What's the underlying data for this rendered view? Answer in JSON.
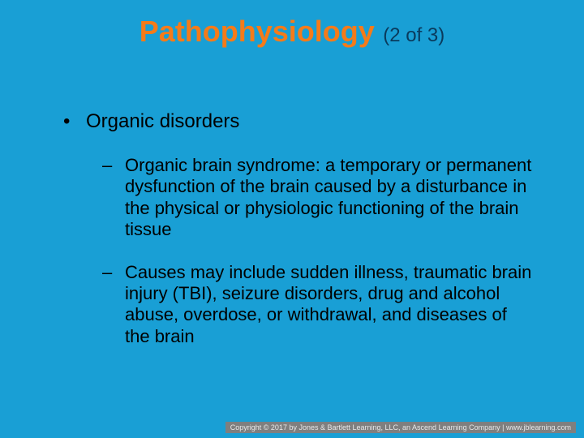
{
  "slide": {
    "background_color": "#199fd5",
    "title": {
      "main": "Pathophysiology",
      "sub": "(2 of 3)",
      "main_color": "#f57b19",
      "sub_color": "#0a3a5c",
      "main_fontsize": 36,
      "sub_fontsize": 24
    },
    "body": {
      "text_color": "#000000",
      "lvl1_fontsize": 24,
      "lvl2_fontsize": 22,
      "items": [
        {
          "bullet": "•",
          "text": "Organic disorders",
          "children": [
            {
              "dash": "–",
              "text": "Organic brain syndrome: a temporary or permanent dysfunction of the brain caused by a disturbance in the physical or physiologic functioning of the brain tissue"
            },
            {
              "dash": "–",
              "text": "Causes may include sudden illness, traumatic brain injury (TBI), seizure disorders, drug and alcohol abuse, overdose, or withdrawal, and diseases of the brain"
            }
          ]
        }
      ]
    },
    "footer": "Copyright © 2017 by Jones & Bartlett Learning, LLC, an Ascend Learning Company  |  www.jblearning.com"
  }
}
